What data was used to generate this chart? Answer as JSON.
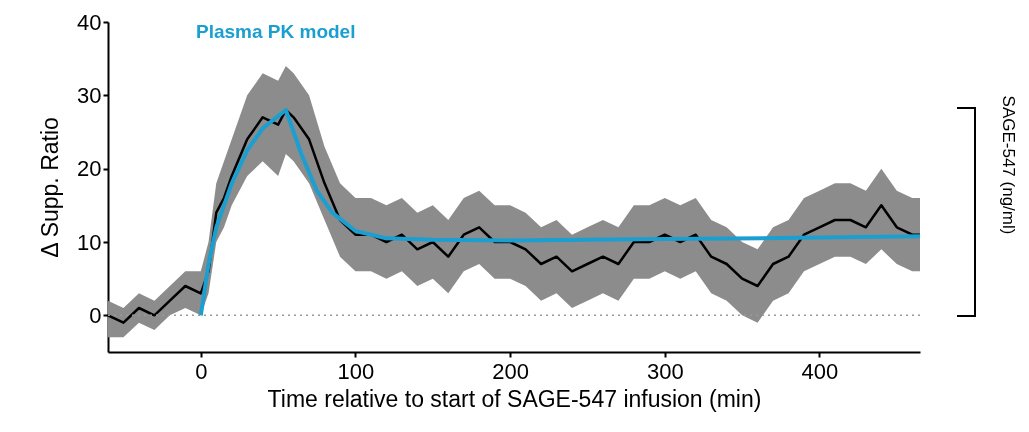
{
  "chart_data": {
    "type": "line",
    "xlabel": "Time relative to start of SAGE-547 infusion (min)",
    "ylabel": "Δ Supp. Ratio",
    "y2label": "SAGE-547 (ng/ml)",
    "xlim": [
      -60,
      465
    ],
    "xticks": [
      0,
      100,
      200,
      300,
      400
    ],
    "ylim": [
      -5,
      40
    ],
    "yticks": [
      0,
      10,
      20,
      30,
      40
    ],
    "grid": false,
    "marker": "none",
    "series": [
      {
        "color": "#000000",
        "line_style": "solid",
        "x": [
          -60,
          -50,
          -40,
          -30,
          -20,
          -10,
          0,
          5,
          10,
          15,
          20,
          30,
          40,
          50,
          55,
          60,
          70,
          80,
          90,
          100,
          110,
          120,
          130,
          140,
          150,
          160,
          170,
          180,
          190,
          200,
          210,
          220,
          230,
          240,
          250,
          260,
          270,
          280,
          290,
          300,
          310,
          320,
          330,
          340,
          350,
          360,
          370,
          380,
          390,
          400,
          410,
          420,
          430,
          440,
          450,
          460,
          465
        ],
        "values": [
          0,
          -1,
          1,
          0,
          2,
          4,
          3,
          6,
          14,
          16,
          19,
          24,
          27,
          26,
          28,
          27,
          24,
          18,
          13,
          11,
          11,
          10,
          11,
          9,
          10,
          8,
          11,
          12,
          10,
          10,
          9,
          7,
          8,
          6,
          7,
          8,
          7,
          10,
          10,
          11,
          10,
          11,
          8,
          7,
          5,
          4,
          7,
          8,
          11,
          12,
          13,
          13,
          12,
          15,
          12,
          11,
          11
        ],
        "lower": [
          -3,
          -3,
          -1,
          -2,
          0,
          1,
          0,
          3,
          10,
          12,
          15,
          19,
          21,
          19,
          22,
          21,
          18,
          13,
          8,
          6,
          6,
          5,
          6,
          4,
          5,
          3,
          6,
          7,
          5,
          5,
          4,
          2,
          3,
          1,
          2,
          3,
          2,
          5,
          5,
          6,
          5,
          6,
          3,
          2,
          0,
          -1,
          2,
          3,
          6,
          7,
          8,
          8,
          7,
          9,
          7,
          6,
          6
        ],
        "upper": [
          2,
          1,
          3,
          2,
          4,
          6,
          6,
          10,
          18,
          21,
          24,
          30,
          33,
          32,
          34,
          33,
          30,
          23,
          18,
          16,
          16,
          15,
          16,
          14,
          15,
          13,
          16,
          17,
          15,
          15,
          14,
          12,
          13,
          11,
          12,
          13,
          12,
          15,
          15,
          16,
          15,
          16,
          13,
          12,
          10,
          9,
          12,
          13,
          16,
          17,
          18,
          18,
          17,
          20,
          17,
          16,
          16
        ]
      },
      {
        "name": "Plasma PK model",
        "color": "#1a9fd0",
        "line_style": "solid",
        "x": [
          0,
          5,
          10,
          20,
          30,
          40,
          55,
          65,
          75,
          85,
          100,
          120,
          150,
          200,
          300,
          400,
          465
        ],
        "values": [
          0,
          7,
          12,
          18,
          22.5,
          25.5,
          28,
          22,
          17,
          14,
          11.5,
          10.5,
          10.3,
          10.2,
          10.4,
          10.6,
          10.8
        ]
      }
    ],
    "ref_lines": [
      {
        "axis": "y",
        "value": 0,
        "color": "#999999",
        "line_style": "dotted"
      }
    ]
  }
}
